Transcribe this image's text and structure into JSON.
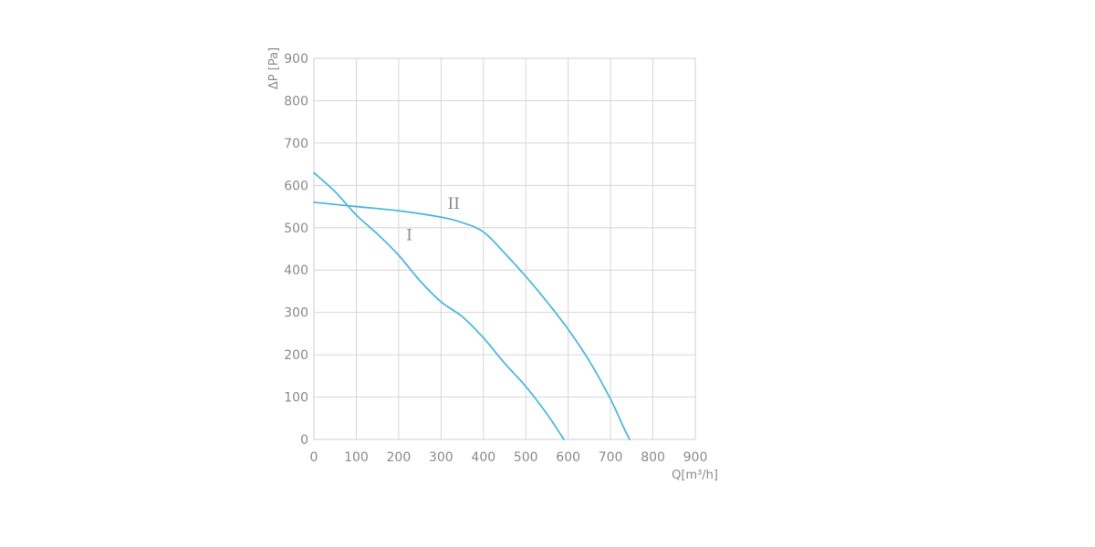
{
  "chart_data": {
    "type": "line",
    "xlabel": "Q[m³/h]",
    "ylabel": "ΔP [Pa]",
    "xlim": [
      0,
      900
    ],
    "ylim": [
      0,
      900
    ],
    "x_ticks": [
      "0",
      "100",
      "200",
      "300",
      "400",
      "500",
      "600",
      "700",
      "800",
      "900"
    ],
    "y_ticks": [
      "0",
      "100",
      "200",
      "300",
      "400",
      "500",
      "600",
      "700",
      "800",
      "900"
    ],
    "grid": true,
    "line_color": "#4fb8e0",
    "series": [
      {
        "name": "I",
        "points": [
          [
            0,
            630
          ],
          [
            50,
            585
          ],
          [
            100,
            530
          ],
          [
            150,
            485
          ],
          [
            200,
            435
          ],
          [
            250,
            375
          ],
          [
            300,
            325
          ],
          [
            350,
            290
          ],
          [
            400,
            240
          ],
          [
            450,
            180
          ],
          [
            500,
            125
          ],
          [
            550,
            60
          ],
          [
            580,
            15
          ],
          [
            590,
            0
          ]
        ]
      },
      {
        "name": "II",
        "points": [
          [
            0,
            560
          ],
          [
            100,
            550
          ],
          [
            200,
            540
          ],
          [
            300,
            525
          ],
          [
            350,
            512
          ],
          [
            400,
            490
          ],
          [
            450,
            440
          ],
          [
            500,
            385
          ],
          [
            550,
            325
          ],
          [
            600,
            260
          ],
          [
            650,
            185
          ],
          [
            700,
            95
          ],
          [
            730,
            30
          ],
          [
            745,
            0
          ]
        ]
      }
    ]
  }
}
